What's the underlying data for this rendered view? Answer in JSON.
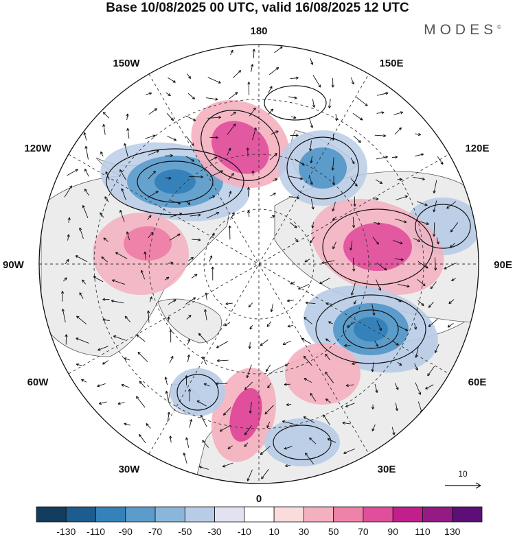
{
  "title": "Base 10/08/2025 00 UTC, valid 16/08/2025 12 UTC",
  "logo": "MODES",
  "logo_mark": "©",
  "labels": {
    "top": "180",
    "bottom": "0",
    "left": "90W",
    "right": "90E",
    "l150w": "150W",
    "l150e": "150E",
    "l120w": "120W",
    "l120e": "120E",
    "l60w": "60W",
    "l60e": "60E",
    "l30w": "30W",
    "l30e": "30E"
  },
  "vector_scale": {
    "label": "10"
  },
  "colorbar": {
    "ticks": [
      "-130",
      "-110",
      "-90",
      "-70",
      "-50",
      "-30",
      "-10",
      "10",
      "30",
      "50",
      "70",
      "90",
      "110",
      "130"
    ],
    "colors": [
      "#133d5e",
      "#1d5c8e",
      "#3582ba",
      "#5b9ccb",
      "#8bb6dc",
      "#b8cce7",
      "#e2e2f1",
      "#ffffff",
      "#fbdcdc",
      "#f5b0bf",
      "#ef82a9",
      "#e14f9c",
      "#c21f8c",
      "#951a86",
      "#5e0f77"
    ]
  },
  "anomalies": [
    {
      "id": "blue-120w",
      "value": -90
    },
    {
      "id": "red-150w",
      "value": 90
    },
    {
      "id": "blue-150e",
      "value": -90
    },
    {
      "id": "blue-110e",
      "value": -50
    },
    {
      "id": "red-90e",
      "value": 90
    },
    {
      "id": "blue-70e",
      "value": -90
    },
    {
      "id": "red-90w",
      "value": 70
    },
    {
      "id": "red-50e",
      "value": 70
    },
    {
      "id": "red-10w",
      "value": 90
    },
    {
      "id": "blue-45w",
      "value": -70
    },
    {
      "id": "blue-20e",
      "value": -50
    }
  ]
}
